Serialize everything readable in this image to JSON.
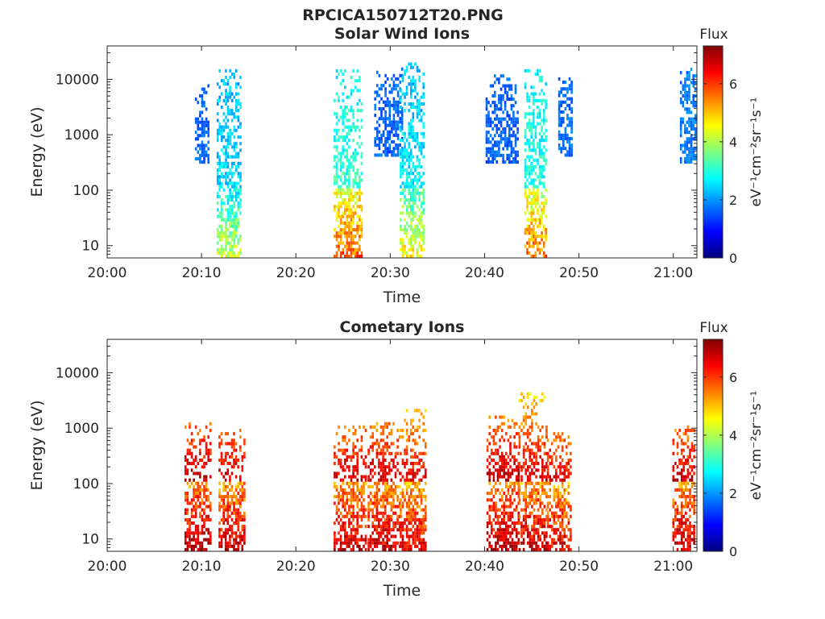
{
  "figure": {
    "title": "RPCICA150712T20.PNG"
  },
  "colormap": [
    "#00007f",
    "#0000ff",
    "#007fff",
    "#00ffff",
    "#7fff7f",
    "#ffff00",
    "#ff7f00",
    "#ff0000",
    "#7f0000"
  ],
  "chart_data": [
    {
      "type": "heatmap",
      "title": "Solar Wind Ions",
      "xlabel": "Time",
      "ylabel": "Energy (eV)",
      "x_ticks": [
        "20:00",
        "20:10",
        "20:20",
        "20:30",
        "20:40",
        "20:50",
        "21:00"
      ],
      "x_range_minutes": [
        0,
        62.5
      ],
      "y_scale": "log",
      "y_ticks": [
        "10",
        "100",
        "1000",
        "10000"
      ],
      "y_range": [
        6,
        40000
      ],
      "colorbar": {
        "title": "Flux",
        "label": "eV⁻¹cm⁻²sr⁻¹s⁻¹",
        "range": [
          0,
          7.3
        ],
        "ticks": [
          "0",
          "2",
          "4",
          "6"
        ]
      },
      "bursts": [
        {
          "t_start": 9.3,
          "t_end": 10.8,
          "e_min": 300,
          "e_max": 8000,
          "flux": 1.6,
          "low_flux": 1.6
        },
        {
          "t_start": 11.6,
          "t_end": 14.2,
          "e_min": 6,
          "e_max": 14000,
          "flux": 1.6,
          "low_flux": 4.2
        },
        {
          "t_start": 24.0,
          "t_end": 27.0,
          "e_min": 6,
          "e_max": 14000,
          "flux": 1.6,
          "low_flux": 5.8
        },
        {
          "t_start": 28.3,
          "t_end": 31.2,
          "e_min": 400,
          "e_max": 15000,
          "flux": 1.6,
          "low_flux": 1.6
        },
        {
          "t_start": 31.0,
          "t_end": 33.5,
          "e_min": 6,
          "e_max": 20000,
          "flux": 1.6,
          "low_flux": 4.6
        },
        {
          "t_start": 40.1,
          "t_end": 43.5,
          "e_min": 300,
          "e_max": 12000,
          "flux": 1.6,
          "low_flux": 1.6
        },
        {
          "t_start": 44.2,
          "t_end": 46.5,
          "e_min": 6,
          "e_max": 14000,
          "flux": 1.6,
          "low_flux": 5.6
        },
        {
          "t_start": 47.8,
          "t_end": 49.3,
          "e_min": 400,
          "e_max": 12000,
          "flux": 1.7,
          "low_flux": 1.7
        },
        {
          "t_start": 60.7,
          "t_end": 62.4,
          "e_min": 300,
          "e_max": 16000,
          "flux": 1.8,
          "low_flux": 2.4
        }
      ]
    },
    {
      "type": "heatmap",
      "title": "Cometary Ions",
      "xlabel": "Time",
      "ylabel": "Energy (eV)",
      "x_ticks": [
        "20:00",
        "20:10",
        "20:20",
        "20:30",
        "20:40",
        "20:50",
        "21:00"
      ],
      "x_range_minutes": [
        0,
        62.5
      ],
      "y_scale": "log",
      "y_ticks": [
        "10",
        "100",
        "1000",
        "10000"
      ],
      "y_range": [
        6,
        40000
      ],
      "colorbar": {
        "title": "Flux",
        "label": "eV⁻¹cm⁻²sr⁻¹s⁻¹",
        "range": [
          0,
          7.3
        ],
        "ticks": [
          "0",
          "2",
          "4",
          "6"
        ]
      },
      "bursts": [
        {
          "t_start": 8.2,
          "t_end": 11.0,
          "e_min": 6,
          "e_max": 1200,
          "flux": 7.0,
          "low_flux": 7.0
        },
        {
          "t_start": 11.8,
          "t_end": 14.5,
          "e_min": 6,
          "e_max": 900,
          "flux": 6.8,
          "low_flux": 6.8
        },
        {
          "t_start": 24.0,
          "t_end": 27.5,
          "e_min": 6,
          "e_max": 1100,
          "flux": 6.8,
          "low_flux": 6.8
        },
        {
          "t_start": 27.6,
          "t_end": 30.9,
          "e_min": 6,
          "e_max": 1200,
          "flux": 6.8,
          "low_flux": 6.8
        },
        {
          "t_start": 31.0,
          "t_end": 33.7,
          "e_min": 6,
          "e_max": 2000,
          "flux": 6.6,
          "low_flux": 6.6
        },
        {
          "t_start": 40.2,
          "t_end": 43.6,
          "e_min": 6,
          "e_max": 1600,
          "flux": 7.0,
          "low_flux": 7.0
        },
        {
          "t_start": 43.6,
          "t_end": 46.6,
          "e_min": 6,
          "e_max": 4000,
          "flux": 6.8,
          "low_flux": 6.8
        },
        {
          "t_start": 46.6,
          "t_end": 49.2,
          "e_min": 6,
          "e_max": 800,
          "flux": 6.6,
          "low_flux": 6.6
        },
        {
          "t_start": 59.9,
          "t_end": 62.4,
          "e_min": 6,
          "e_max": 1100,
          "flux": 6.8,
          "low_flux": 6.8
        }
      ]
    }
  ]
}
